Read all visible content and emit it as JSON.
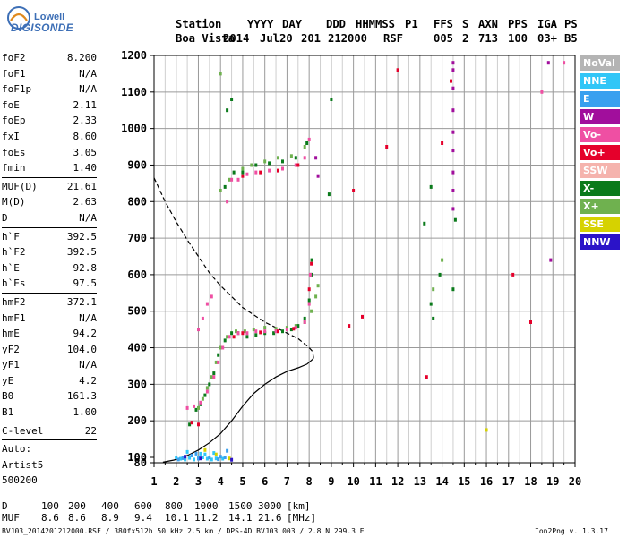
{
  "logo": {
    "line1": "Lowell",
    "line2": "DIGISONDE"
  },
  "header": {
    "col_titles": [
      "Station",
      "YYYY",
      "DAY",
      "DDD",
      "HHMMSS",
      "P1",
      "FFS",
      "S",
      "AXN",
      "PPS",
      "IGA",
      "PS"
    ],
    "col_values": [
      "Boa Vista",
      "2014",
      "Jul20",
      "201",
      "212000",
      "RSF",
      "005",
      "2",
      "713",
      "100",
      "03+",
      "B5"
    ]
  },
  "params": [
    {
      "label": "foF2",
      "value": "8.200"
    },
    {
      "label": "foF1",
      "value": "N/A"
    },
    {
      "label": "foF1p",
      "value": "N/A"
    },
    {
      "label": "foE",
      "value": "2.11"
    },
    {
      "label": "foEp",
      "value": "2.33"
    },
    {
      "label": "fxI",
      "value": "8.60"
    },
    {
      "label": "foEs",
      "value": "3.05"
    },
    {
      "label": "fmin",
      "value": "1.40"
    },
    {
      "sep": true
    },
    {
      "label": "MUF(D)",
      "value": "21.61"
    },
    {
      "label": "M(D)",
      "value": "2.63"
    },
    {
      "label": "D",
      "value": "N/A"
    },
    {
      "sep": true
    },
    {
      "label": "h`F",
      "value": "392.5"
    },
    {
      "label": "h`F2",
      "value": "392.5"
    },
    {
      "label": "h`E",
      "value": "92.8"
    },
    {
      "label": "h`Es",
      "value": "97.5"
    },
    {
      "sep": true
    },
    {
      "label": "hmF2",
      "value": "372.1"
    },
    {
      "label": "hmF1",
      "value": "N/A"
    },
    {
      "label": "hmE",
      "value": "94.2"
    },
    {
      "label": "yF2",
      "value": "104.0"
    },
    {
      "label": "yF1",
      "value": "N/A"
    },
    {
      "label": "yE",
      "value": "4.2"
    },
    {
      "label": "B0",
      "value": "161.3"
    },
    {
      "label": "B1",
      "value": "1.00"
    },
    {
      "sep": true
    },
    {
      "label": "C-level",
      "value": "22"
    },
    {
      "sep": true
    },
    {
      "text": "Auto:"
    },
    {
      "text": "Artist5"
    },
    {
      "text": "500200"
    }
  ],
  "legend": [
    {
      "label": "NoVal",
      "color": "#b4b4b4"
    },
    {
      "label": "NNE",
      "color": "#31c6f7"
    },
    {
      "label": "E",
      "color": "#3aa0ef"
    },
    {
      "label": "W",
      "color": "#a10e9c"
    },
    {
      "label": "Vo-",
      "color": "#ef4fa3"
    },
    {
      "label": "Vo+",
      "color": "#e5002b"
    },
    {
      "label": "SSW",
      "color": "#f5b3ad"
    },
    {
      "label": "X-",
      "color": "#0a7a1b"
    },
    {
      "label": "X+",
      "color": "#6fb14f"
    },
    {
      "label": "SSE",
      "color": "#d6d200"
    },
    {
      "label": "NNW",
      "color": "#2b13c8"
    }
  ],
  "muf_table": {
    "row1_label": "D",
    "row1_values": [
      "100",
      "200",
      "400",
      "600",
      "800",
      "1000",
      "1500",
      "3000"
    ],
    "row1_unit": "[km]",
    "row2_label": "MUF",
    "row2_values": [
      "8.6",
      "8.6",
      "8.9",
      "9.4",
      "10.1",
      "11.2",
      "14.1",
      "21.6"
    ],
    "row2_unit": "[MHz]"
  },
  "footer": {
    "file_info": "BVJ03_2014201212000.RSF / 380fx512h 50 kHz 2.5 km / DPS-4D BVJ03 003 / 2.8 N 299.3 E",
    "version": "Ion2Png v. 1.3.17"
  },
  "chart_data": {
    "type": "scatter",
    "x_ticks": [
      "1",
      "2",
      "3",
      "4",
      "5",
      "6",
      "7",
      "8",
      "9",
      "10",
      "11",
      "12",
      "13",
      "14",
      "15",
      "16",
      "17",
      "18",
      "19",
      "20"
    ],
    "y_ticks": [
      "80",
      "100",
      "200",
      "300",
      "400",
      "500",
      "600",
      "700",
      "800",
      "900",
      "1000",
      "1100",
      "1200"
    ],
    "xlim": [
      1,
      20
    ],
    "ylim": [
      80,
      1200
    ],
    "grid": true,
    "series": [
      {
        "name": "X-",
        "color": "#0a7a1b",
        "points": [
          [
            2.6,
            190
          ],
          [
            2.9,
            230
          ],
          [
            3.1,
            245
          ],
          [
            3.3,
            270
          ],
          [
            3.5,
            300
          ],
          [
            3.7,
            330
          ],
          [
            3.9,
            380
          ],
          [
            4.2,
            420
          ],
          [
            4.5,
            440
          ],
          [
            4.8,
            440
          ],
          [
            5.2,
            430
          ],
          [
            5.6,
            435
          ],
          [
            6.0,
            440
          ],
          [
            6.4,
            440
          ],
          [
            6.8,
            445
          ],
          [
            7.2,
            450
          ],
          [
            7.5,
            460
          ],
          [
            7.8,
            480
          ],
          [
            8.0,
            530
          ],
          [
            8.1,
            600
          ],
          [
            8.12,
            640
          ],
          [
            4.2,
            840
          ],
          [
            4.6,
            880
          ],
          [
            5.0,
            880
          ],
          [
            5.6,
            900
          ],
          [
            6.2,
            905
          ],
          [
            6.8,
            910
          ],
          [
            7.4,
            920
          ],
          [
            7.9,
            960
          ],
          [
            13.5,
            520
          ],
          [
            13.6,
            480
          ],
          [
            13.9,
            600
          ],
          [
            14.5,
            560
          ],
          [
            13.2,
            740
          ],
          [
            13.5,
            840
          ],
          [
            4.3,
            1050
          ],
          [
            4.5,
            1080
          ],
          [
            9.0,
            1080
          ],
          [
            8.9,
            820
          ],
          [
            14.6,
            750
          ]
        ]
      },
      {
        "name": "X+",
        "color": "#6fb14f",
        "points": [
          [
            3.0,
            235
          ],
          [
            3.2,
            260
          ],
          [
            3.4,
            290
          ],
          [
            3.6,
            320
          ],
          [
            3.8,
            360
          ],
          [
            4.0,
            400
          ],
          [
            4.3,
            430
          ],
          [
            4.7,
            445
          ],
          [
            5.1,
            445
          ],
          [
            5.5,
            450
          ],
          [
            6.0,
            455
          ],
          [
            6.5,
            452
          ],
          [
            7.0,
            455
          ],
          [
            7.4,
            460
          ],
          [
            7.8,
            470
          ],
          [
            8.1,
            500
          ],
          [
            8.3,
            540
          ],
          [
            8.4,
            570
          ],
          [
            4.0,
            830
          ],
          [
            4.4,
            860
          ],
          [
            5.0,
            890
          ],
          [
            5.4,
            900
          ],
          [
            6.0,
            910
          ],
          [
            6.6,
            920
          ],
          [
            7.2,
            925
          ],
          [
            7.8,
            950
          ],
          [
            14.0,
            640
          ],
          [
            13.6,
            560
          ],
          [
            4.0,
            1150
          ]
        ]
      },
      {
        "name": "Vo-",
        "color": "#ef4fa3",
        "points": [
          [
            2.5,
            235
          ],
          [
            2.8,
            240
          ],
          [
            3.1,
            250
          ],
          [
            3.4,
            280
          ],
          [
            3.7,
            320
          ],
          [
            3.9,
            360
          ],
          [
            4.1,
            400
          ],
          [
            4.4,
            430
          ],
          [
            4.8,
            440
          ],
          [
            5.2,
            440
          ],
          [
            5.6,
            445
          ],
          [
            6.0,
            445
          ],
          [
            6.5,
            445
          ],
          [
            7.0,
            450
          ],
          [
            7.4,
            455
          ],
          [
            7.8,
            470
          ],
          [
            8.0,
            520
          ],
          [
            8.05,
            600
          ],
          [
            4.3,
            800
          ],
          [
            4.5,
            860
          ],
          [
            4.8,
            860
          ],
          [
            5.2,
            875
          ],
          [
            5.6,
            880
          ],
          [
            6.2,
            885
          ],
          [
            6.8,
            890
          ],
          [
            7.4,
            900
          ],
          [
            7.8,
            920
          ],
          [
            8.0,
            970
          ],
          [
            3.0,
            450
          ],
          [
            3.2,
            480
          ],
          [
            3.4,
            520
          ],
          [
            3.6,
            540
          ],
          [
            18.5,
            1100
          ],
          [
            19.5,
            1180
          ]
        ]
      },
      {
        "name": "Vo+",
        "color": "#e5002b",
        "points": [
          [
            3.0,
            190
          ],
          [
            2.7,
            195
          ],
          [
            4.6,
            430
          ],
          [
            5.0,
            440
          ],
          [
            5.8,
            442
          ],
          [
            6.6,
            445
          ],
          [
            7.3,
            452
          ],
          [
            8.0,
            560
          ],
          [
            8.1,
            630
          ],
          [
            5.0,
            870
          ],
          [
            5.8,
            880
          ],
          [
            6.6,
            885
          ],
          [
            7.5,
            900
          ],
          [
            12.0,
            1160
          ],
          [
            11.5,
            950
          ],
          [
            10.0,
            830
          ],
          [
            9.8,
            460
          ],
          [
            10.4,
            485
          ],
          [
            13.3,
            320
          ],
          [
            14.0,
            960
          ],
          [
            14.4,
            1130
          ],
          [
            17.2,
            600
          ],
          [
            18.0,
            470
          ]
        ]
      },
      {
        "name": "W",
        "color": "#a10e9c",
        "points": [
          [
            14.5,
            1160
          ],
          [
            14.5,
            1110
          ],
          [
            14.5,
            1050
          ],
          [
            14.5,
            990
          ],
          [
            14.5,
            940
          ],
          [
            14.5,
            880
          ],
          [
            14.5,
            830
          ],
          [
            14.5,
            780
          ],
          [
            14.5,
            1180
          ],
          [
            18.8,
            1180
          ],
          [
            18.9,
            640
          ],
          [
            8.3,
            920
          ],
          [
            8.4,
            870
          ]
        ]
      },
      {
        "name": "NNE",
        "color": "#31c6f7",
        "points": [
          [
            2.0,
            100
          ],
          [
            2.2,
            95
          ],
          [
            2.4,
            92
          ],
          [
            2.6,
            98
          ],
          [
            2.8,
            92
          ],
          [
            3.0,
            97
          ],
          [
            3.2,
            100
          ],
          [
            3.4,
            95
          ],
          [
            3.6,
            92
          ],
          [
            3.8,
            96
          ],
          [
            3.1,
            110
          ],
          [
            3.3,
            108
          ],
          [
            4.1,
            95
          ],
          [
            2.5,
            115
          ],
          [
            3.7,
            112
          ]
        ]
      },
      {
        "name": "E",
        "color": "#3aa0ef",
        "points": [
          [
            2.1,
            92
          ],
          [
            2.3,
            97
          ],
          [
            2.7,
            105
          ],
          [
            2.9,
            110
          ],
          [
            3.0,
            95
          ],
          [
            3.5,
            100
          ],
          [
            3.9,
            93
          ],
          [
            4.2,
            100
          ],
          [
            4.0,
            102
          ],
          [
            4.3,
            118
          ]
        ]
      },
      {
        "name": "SSE",
        "color": "#d6d200",
        "points": [
          [
            3.3,
            120
          ],
          [
            3.8,
            108
          ],
          [
            4.4,
            96
          ],
          [
            16.0,
            175
          ]
        ]
      },
      {
        "name": "NNW",
        "color": "#2b13c8",
        "points": [
          [
            2.4,
            102
          ],
          [
            3.1,
            96
          ],
          [
            4.5,
            91
          ]
        ]
      }
    ],
    "profile_curve": {
      "color": "#000000",
      "points": [
        [
          1.4,
          82
        ],
        [
          1.9,
          90
        ],
        [
          2.5,
          105
        ],
        [
          3.0,
          120
        ],
        [
          3.5,
          140
        ],
        [
          4.0,
          165
        ],
        [
          4.5,
          200
        ],
        [
          5.0,
          240
        ],
        [
          5.5,
          275
        ],
        [
          6.0,
          300
        ],
        [
          6.5,
          320
        ],
        [
          7.0,
          335
        ],
        [
          7.5,
          345
        ],
        [
          7.9,
          355
        ],
        [
          8.15,
          368
        ],
        [
          8.2,
          372.1
        ]
      ]
    },
    "dashed_curve": {
      "color": "#000000",
      "points": [
        [
          1.0,
          865
        ],
        [
          1.5,
          800
        ],
        [
          2.0,
          745
        ],
        [
          2.5,
          695
        ],
        [
          3.0,
          650
        ],
        [
          3.5,
          605
        ],
        [
          4.0,
          570
        ],
        [
          4.5,
          540
        ],
        [
          5.0,
          510
        ],
        [
          5.5,
          490
        ],
        [
          6.0,
          470
        ],
        [
          6.5,
          455
        ],
        [
          7.0,
          440
        ],
        [
          7.5,
          425
        ],
        [
          8.0,
          400
        ],
        [
          8.15,
          390
        ],
        [
          8.2,
          372.1
        ]
      ]
    }
  }
}
